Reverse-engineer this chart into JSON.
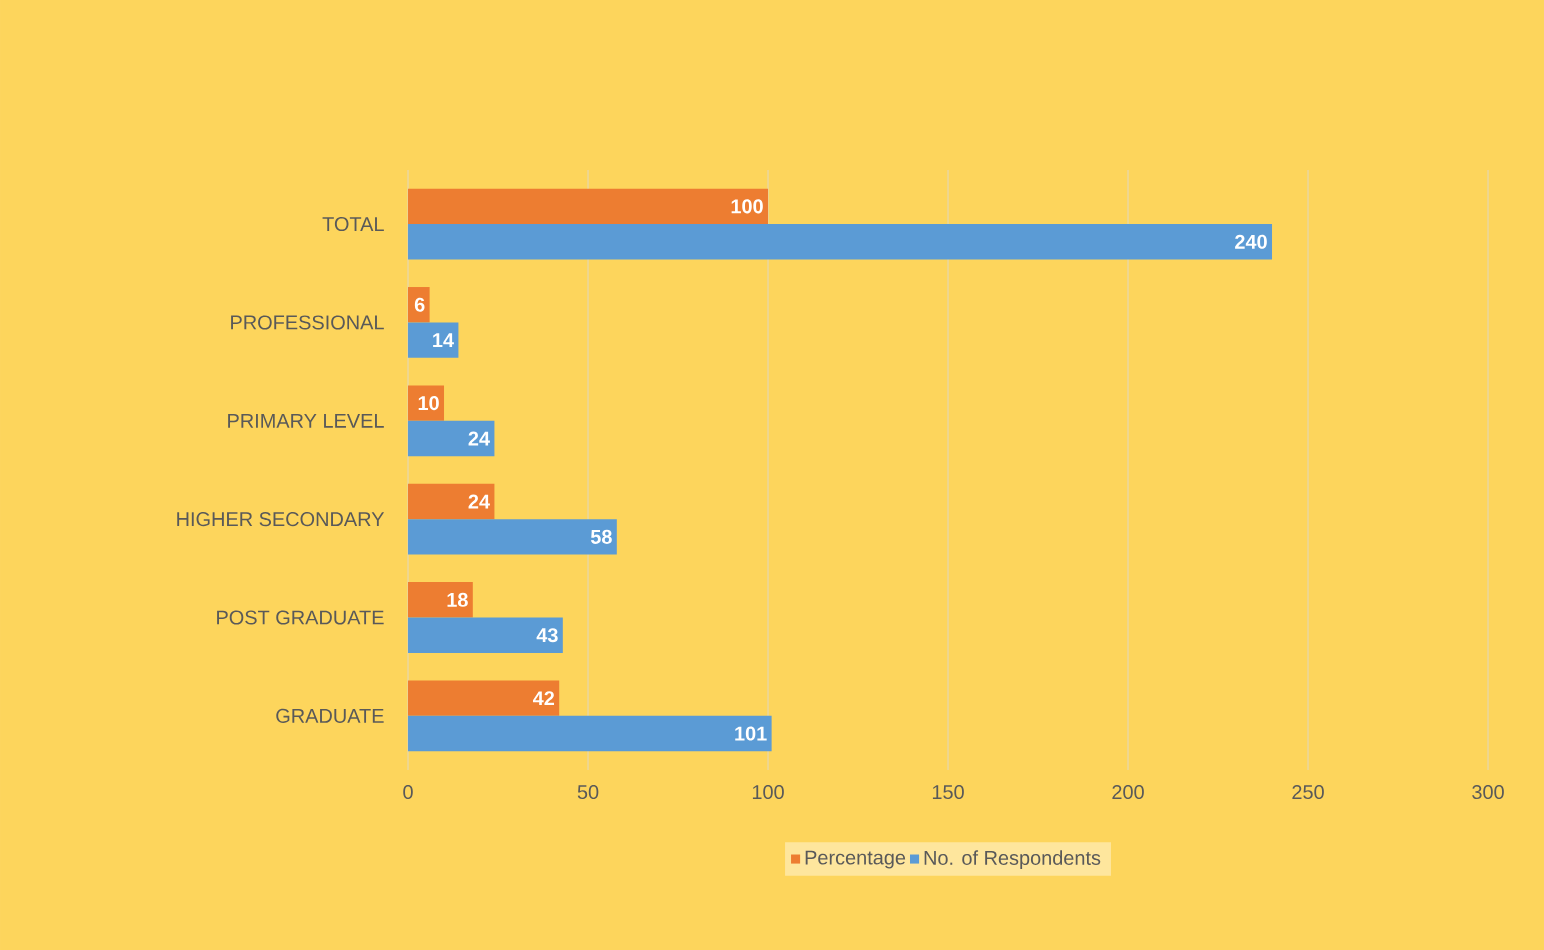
{
  "chart_data": {
    "type": "bar",
    "orientation": "horizontal",
    "categories": [
      "TOTAL",
      "PROFESSIONAL",
      "PRIMARY LEVEL",
      "HIGHER SECONDARY",
      "POST GRADUATE",
      "GRADUATE"
    ],
    "series": [
      {
        "name": "Percentage",
        "color": "#ed7d31",
        "values": [
          100,
          6,
          10,
          24,
          18,
          42
        ]
      },
      {
        "name": "No. of Respondents",
        "color": "#5b9bd5",
        "values": [
          240,
          14,
          24,
          58,
          43,
          101
        ]
      }
    ],
    "xlim": [
      0,
      300
    ],
    "xticks": [
      0,
      50,
      100,
      150,
      200,
      250,
      300
    ],
    "grid": "x",
    "legend": "bottom",
    "data_labels": true
  }
}
